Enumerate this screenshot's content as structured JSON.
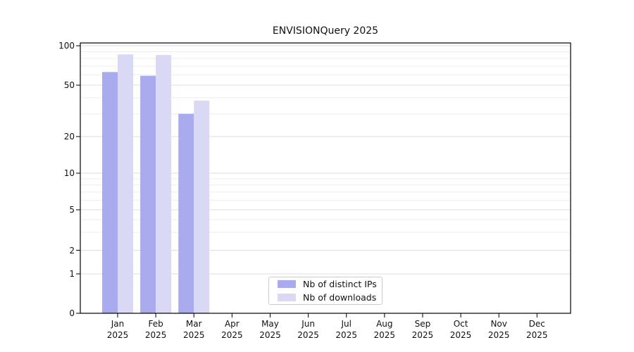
{
  "title": "ENVISIONQuery 2025",
  "chart_data": {
    "type": "bar",
    "title": "ENVISIONQuery 2025",
    "categories": [
      "Jan 2025",
      "Feb 2025",
      "Mar 2025",
      "Apr 2025",
      "May 2025",
      "Jun 2025",
      "Jul 2025",
      "Aug 2025",
      "Sep 2025",
      "Oct 2025",
      "Nov 2025",
      "Dec 2025"
    ],
    "series": [
      {
        "name": "Nb of distinct IPs",
        "color": "#aaaaee",
        "values": [
          63,
          59,
          30,
          0,
          0,
          0,
          0,
          0,
          0,
          0,
          0,
          0
        ]
      },
      {
        "name": "Nb of downloads",
        "color": "#d9d9f6",
        "values": [
          86,
          85,
          38,
          0,
          0,
          0,
          0,
          0,
          0,
          0,
          0,
          0
        ]
      }
    ],
    "ylim": [
      0,
      100
    ],
    "yticks": [
      0,
      1,
      2,
      5,
      10,
      20,
      50,
      100
    ],
    "yscale": "log-like with zero baseline",
    "grid": true,
    "legend_position": "bottom-center"
  },
  "colors": {
    "spine": "#000000",
    "grid_major": "#dcdce6",
    "grid_minor": "#ededed",
    "text": "#111111",
    "background": "#ffffff"
  }
}
